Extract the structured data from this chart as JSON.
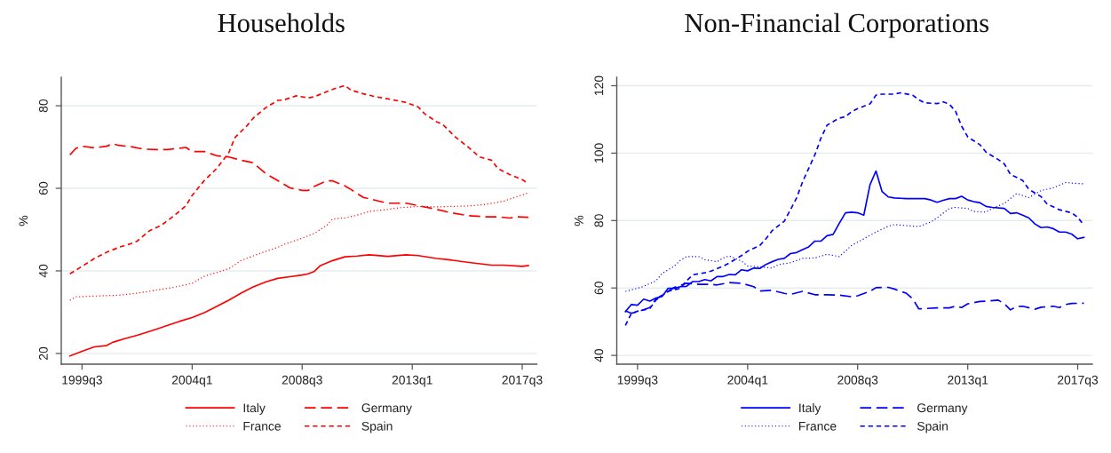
{
  "chart_data": [
    {
      "type": "line",
      "title": "Households",
      "ylabel": "%",
      "xlim": [
        "1998-08-25",
        "2018-02-05"
      ],
      "xticks": [
        {
          "value": "1999-07",
          "label": "1999q3"
        },
        {
          "value": "2004-01",
          "label": "2004q1"
        },
        {
          "value": "2008-07",
          "label": "2008q3"
        },
        {
          "value": "2013-01",
          "label": "2013q1"
        },
        {
          "value": "2017-07",
          "label": "2017q3"
        }
      ],
      "ylim": [
        17.4,
        86.9
      ],
      "yticks": [
        20,
        40,
        60,
        80
      ],
      "grid": "y",
      "legend": "bottom",
      "series": [
        {
          "name": "Italy",
          "color": "#ff0000",
          "line_style": "solid",
          "x": [
            "1999-01",
            "1999-07",
            "2000-01",
            "2000-07",
            "2000-10",
            "2001-04",
            "2001-10",
            "2002-07",
            "2003-01",
            "2003-07",
            "2004-01",
            "2004-07",
            "2005-01",
            "2005-07",
            "2006-01",
            "2006-07",
            "2007-01",
            "2007-07",
            "2008-01",
            "2008-07",
            "2008-10",
            "2009-01",
            "2009-04",
            "2009-10",
            "2010-04",
            "2010-10",
            "2011-04",
            "2012-01",
            "2012-10",
            "2013-04",
            "2014-01",
            "2014-07",
            "2015-04",
            "2016-04",
            "2016-10",
            "2017-07",
            "2017-10"
          ],
          "values": [
            19.4,
            20.5,
            21.6,
            21.9,
            22.7,
            23.6,
            24.4,
            25.8,
            26.8,
            27.8,
            28.7,
            29.9,
            31.4,
            32.9,
            34.6,
            36.1,
            37.3,
            38.2,
            38.6,
            39.0,
            39.3,
            39.9,
            41.3,
            42.5,
            43.4,
            43.6,
            43.9,
            43.5,
            43.9,
            43.7,
            43.0,
            42.7,
            42.1,
            41.4,
            41.4,
            41.1,
            41.3
          ]
        },
        {
          "name": "Germany",
          "color": "#ff0000",
          "line_style": "dashed",
          "x": [
            "1999-01",
            "1999-04",
            "1999-07",
            "2000-01",
            "2000-07",
            "2000-10",
            "2001-01",
            "2001-07",
            "2002-01",
            "2002-07",
            "2003-01",
            "2003-10",
            "2004-01",
            "2004-07",
            "2005-01",
            "2005-07",
            "2006-01",
            "2006-07",
            "2007-01",
            "2007-07",
            "2008-01",
            "2008-07",
            "2008-10",
            "2009-01",
            "2009-07",
            "2009-10",
            "2010-04",
            "2010-07",
            "2011-01",
            "2011-07",
            "2012-01",
            "2012-10",
            "2013-04",
            "2014-01",
            "2014-07",
            "2015-04",
            "2016-01",
            "2016-07",
            "2017-01",
            "2017-04",
            "2017-10"
          ],
          "values": [
            68.1,
            69.7,
            70.2,
            69.8,
            70.2,
            70.8,
            70.4,
            70.1,
            69.5,
            69.4,
            69.4,
            69.9,
            68.9,
            68.9,
            67.9,
            67.6,
            66.8,
            66.2,
            63.6,
            61.9,
            60.1,
            59.5,
            59.5,
            60.5,
            61.8,
            61.8,
            60.6,
            59.7,
            57.8,
            57.1,
            56.4,
            56.4,
            55.8,
            54.9,
            54.2,
            53.4,
            53.1,
            53.1,
            52.8,
            53.1,
            53.0
          ]
        },
        {
          "name": "France",
          "color": "#ff0000",
          "line_style": "dotted",
          "x": [
            "1999-01",
            "1999-04",
            "2000-01",
            "2001-01",
            "2001-10",
            "2002-07",
            "2003-04",
            "2004-01",
            "2004-07",
            "2005-07",
            "2006-01",
            "2006-10",
            "2007-07",
            "2007-10",
            "2008-07",
            "2009-01",
            "2009-07",
            "2009-10",
            "2010-04",
            "2010-10",
            "2011-04",
            "2012-01",
            "2012-07",
            "2013-04",
            "2014-01",
            "2014-07",
            "2015-04",
            "2016-01",
            "2016-10",
            "2017-04",
            "2017-10"
          ],
          "values": [
            32.9,
            33.7,
            33.9,
            34.1,
            34.6,
            35.3,
            36.0,
            37.0,
            38.7,
            40.5,
            42.5,
            44.2,
            45.7,
            46.4,
            47.9,
            49.1,
            51.0,
            52.6,
            52.8,
            53.5,
            54.4,
            54.9,
            55.3,
            55.6,
            55.5,
            55.6,
            55.7,
            56.1,
            56.9,
            57.9,
            58.9
          ]
        },
        {
          "name": "Spain",
          "color": "#ff0000",
          "line_style": "dashed",
          "x": [
            "1999-01",
            "1999-07",
            "2000-01",
            "2000-07",
            "2001-01",
            "2001-07",
            "2001-10",
            "2002-04",
            "2002-10",
            "2003-04",
            "2003-10",
            "2004-01",
            "2004-07",
            "2005-01",
            "2005-07",
            "2005-10",
            "2006-04",
            "2006-07",
            "2007-01",
            "2007-07",
            "2007-10",
            "2008-04",
            "2008-10",
            "2009-01",
            "2009-07",
            "2009-10",
            "2010-04",
            "2010-07",
            "2011-01",
            "2011-07",
            "2012-04",
            "2012-10",
            "2013-04",
            "2013-07",
            "2014-01",
            "2014-04",
            "2014-10",
            "2015-04",
            "2015-10",
            "2016-04",
            "2016-07",
            "2017-01",
            "2017-07",
            "2017-10"
          ],
          "values": [
            39.3,
            41.1,
            43.0,
            44.5,
            45.7,
            46.6,
            47.2,
            49.7,
            51.1,
            53.3,
            55.8,
            58.3,
            61.9,
            64.8,
            68.6,
            72.3,
            75.2,
            77.0,
            79.5,
            81.3,
            81.4,
            82.4,
            81.9,
            82.2,
            83.4,
            84.0,
            84.9,
            83.8,
            82.9,
            82.2,
            81.4,
            80.8,
            79.7,
            78.1,
            76.1,
            75.5,
            72.5,
            70.2,
            67.6,
            66.8,
            64.8,
            63.3,
            62.1,
            61.2
          ]
        }
      ]
    },
    {
      "type": "line",
      "title": "Non-Financial Corporations",
      "ylabel": "%",
      "xlim": [
        "1998-08-25",
        "2018-02-05"
      ],
      "xticks": [
        {
          "value": "1999-07",
          "label": "1999q3"
        },
        {
          "value": "2004-01",
          "label": "2004q1"
        },
        {
          "value": "2008-07",
          "label": "2008q3"
        },
        {
          "value": "2013-01",
          "label": "2013q1"
        },
        {
          "value": "2017-07",
          "label": "2017q3"
        }
      ],
      "ylim": [
        37.4,
        122.5
      ],
      "yticks": [
        40,
        60,
        80,
        100,
        120
      ],
      "grid": "y",
      "legend": "bottom",
      "series": [
        {
          "name": "Italy",
          "color": "#0000ff",
          "line_style": "solid",
          "x": [
            "1999-01",
            "1999-04",
            "1999-07",
            "1999-10",
            "2000-01",
            "2000-04",
            "2000-07",
            "2000-10",
            "2001-01",
            "2001-04",
            "2001-07",
            "2001-10",
            "2002-01",
            "2002-04",
            "2002-07",
            "2002-10",
            "2003-01",
            "2003-04",
            "2003-07",
            "2003-10",
            "2004-01",
            "2004-04",
            "2004-07",
            "2004-10",
            "2005-01",
            "2005-04",
            "2005-07",
            "2005-10",
            "2006-01",
            "2006-04",
            "2006-07",
            "2006-10",
            "2007-01",
            "2007-04",
            "2007-07",
            "2007-10",
            "2008-01",
            "2008-04",
            "2008-07",
            "2008-10",
            "2009-01",
            "2009-04",
            "2009-07",
            "2009-10",
            "2010-01",
            "2010-07",
            "2011-04",
            "2011-07",
            "2011-10",
            "2012-01",
            "2012-04",
            "2012-07",
            "2012-10",
            "2013-01",
            "2013-04",
            "2013-07",
            "2013-10",
            "2014-01",
            "2014-07",
            "2014-10",
            "2015-01",
            "2015-04",
            "2015-07",
            "2015-10",
            "2016-01",
            "2016-04",
            "2016-07",
            "2016-10",
            "2017-01",
            "2017-04",
            "2017-07",
            "2017-10"
          ],
          "values": [
            53.0,
            55.1,
            54.9,
            56.7,
            56.1,
            57.0,
            57.5,
            59.9,
            59.9,
            60.4,
            60.5,
            61.9,
            61.9,
            62.5,
            62.1,
            63.4,
            63.4,
            64.0,
            63.9,
            65.4,
            65.1,
            65.9,
            65.8,
            67.0,
            67.8,
            68.5,
            68.8,
            70.2,
            70.5,
            71.4,
            72.2,
            73.9,
            73.9,
            75.5,
            75.9,
            79.2,
            82.3,
            82.5,
            82.3,
            81.6,
            90.6,
            94.7,
            88.6,
            87.0,
            86.7,
            86.5,
            86.5,
            86.1,
            85.4,
            86.0,
            86.5,
            86.5,
            87.2,
            86.1,
            85.6,
            85.3,
            84.2,
            83.9,
            83.6,
            82.1,
            82.3,
            81.6,
            80.8,
            79.0,
            77.9,
            78.1,
            77.6,
            76.6,
            76.6,
            76.0,
            74.6,
            75.0
          ]
        },
        {
          "name": "Germany",
          "color": "#0000ff",
          "line_style": "dashed",
          "x": [
            "1999-01",
            "1999-04",
            "1999-07",
            "2000-01",
            "2000-04",
            "2000-10",
            "2001-01",
            "2001-07",
            "2002-01",
            "2002-07",
            "2002-10",
            "2003-04",
            "2003-10",
            "2004-04",
            "2004-07",
            "2005-01",
            "2005-07",
            "2005-10",
            "2006-04",
            "2006-10",
            "2007-04",
            "2007-10",
            "2008-04",
            "2008-07",
            "2009-01",
            "2009-04",
            "2009-10",
            "2010-01",
            "2010-07",
            "2010-10",
            "2011-01",
            "2011-04",
            "2011-10",
            "2012-04",
            "2012-07",
            "2012-10",
            "2013-01",
            "2013-07",
            "2013-10",
            "2014-04",
            "2014-07",
            "2014-10",
            "2015-01",
            "2015-04",
            "2015-10",
            "2016-01",
            "2016-07",
            "2016-10",
            "2017-01",
            "2017-04",
            "2017-10"
          ],
          "values": [
            53.2,
            52.5,
            52.9,
            54.2,
            56.7,
            59.0,
            60.2,
            61.4,
            61.1,
            61.1,
            60.9,
            61.6,
            61.4,
            60.4,
            59.1,
            59.3,
            58.4,
            58.1,
            59.0,
            58.0,
            58.0,
            57.9,
            57.4,
            57.7,
            59.0,
            60.1,
            60.2,
            59.7,
            58.4,
            56.8,
            53.8,
            53.9,
            54.1,
            54.1,
            54.6,
            54.2,
            55.3,
            56.0,
            56.1,
            56.4,
            55.3,
            53.5,
            54.5,
            54.6,
            53.7,
            54.3,
            54.6,
            54.2,
            55.1,
            55.4,
            55.5
          ]
        },
        {
          "name": "France",
          "color": "#0000ff",
          "line_style": "dotted",
          "x": [
            "1999-01",
            "1999-07",
            "1999-10",
            "2000-04",
            "2000-07",
            "2001-01",
            "2001-04",
            "2001-07",
            "2002-01",
            "2002-04",
            "2002-10",
            "2003-01",
            "2003-04",
            "2003-10",
            "2004-01",
            "2004-07",
            "2005-01",
            "2005-04",
            "2005-10",
            "2006-04",
            "2006-10",
            "2007-04",
            "2007-10",
            "2008-04",
            "2008-10",
            "2009-04",
            "2009-10",
            "2010-01",
            "2010-07",
            "2011-01",
            "2011-07",
            "2011-10",
            "2012-04",
            "2012-07",
            "2013-01",
            "2013-04",
            "2013-10",
            "2014-01",
            "2014-07",
            "2015-01",
            "2015-07",
            "2016-01",
            "2016-07",
            "2017-01",
            "2017-04",
            "2017-10"
          ],
          "values": [
            59.0,
            59.9,
            60.5,
            62.1,
            64.3,
            66.5,
            68.2,
            69.3,
            69.3,
            68.4,
            67.8,
            68.9,
            69.5,
            68.0,
            66.5,
            66.3,
            65.9,
            66.9,
            67.5,
            68.8,
            68.9,
            70.0,
            69.3,
            72.6,
            74.6,
            76.6,
            78.3,
            78.8,
            78.5,
            78.2,
            79.6,
            80.8,
            83.6,
            83.9,
            83.6,
            82.7,
            82.5,
            83.6,
            85.1,
            88.0,
            86.8,
            88.9,
            89.7,
            91.3,
            91.1,
            90.9
          ]
        },
        {
          "name": "Spain",
          "color": "#0000ff",
          "line_style": "dashed",
          "x": [
            "1999-01",
            "1999-04",
            "1999-07",
            "2000-01",
            "2000-04",
            "2000-10",
            "2001-04",
            "2001-07",
            "2001-10",
            "2002-04",
            "2002-07",
            "2003-01",
            "2003-04",
            "2003-10",
            "2004-01",
            "2004-07",
            "2004-10",
            "2005-01",
            "2005-07",
            "2005-10",
            "2006-01",
            "2006-04",
            "2006-10",
            "2007-01",
            "2007-04",
            "2007-10",
            "2008-01",
            "2008-04",
            "2008-07",
            "2009-01",
            "2009-04",
            "2009-07",
            "2010-01",
            "2010-04",
            "2010-10",
            "2011-01",
            "2011-04",
            "2011-10",
            "2012-01",
            "2012-04",
            "2012-07",
            "2012-10",
            "2013-01",
            "2013-07",
            "2013-10",
            "2014-04",
            "2014-07",
            "2014-10",
            "2015-04",
            "2015-07",
            "2016-01",
            "2016-04",
            "2016-10",
            "2017-04",
            "2017-07",
            "2017-10"
          ],
          "values": [
            48.9,
            52.5,
            53.1,
            53.9,
            56.4,
            59.0,
            59.9,
            62.1,
            63.9,
            64.5,
            65.0,
            66.5,
            67.4,
            69.6,
            70.9,
            72.6,
            74.6,
            77.0,
            79.8,
            83.2,
            86.7,
            91.5,
            99.5,
            104.5,
            108.3,
            110.4,
            110.8,
            112.3,
            113.2,
            114.6,
            117.2,
            117.5,
            117.5,
            117.9,
            117.2,
            115.8,
            114.9,
            114.7,
            115.2,
            114.5,
            112.5,
            108.0,
            104.8,
            102.5,
            100.3,
            98.1,
            96.8,
            93.7,
            91.9,
            89.3,
            87.1,
            84.9,
            83.2,
            82.3,
            81.0,
            78.6
          ]
        }
      ]
    }
  ]
}
